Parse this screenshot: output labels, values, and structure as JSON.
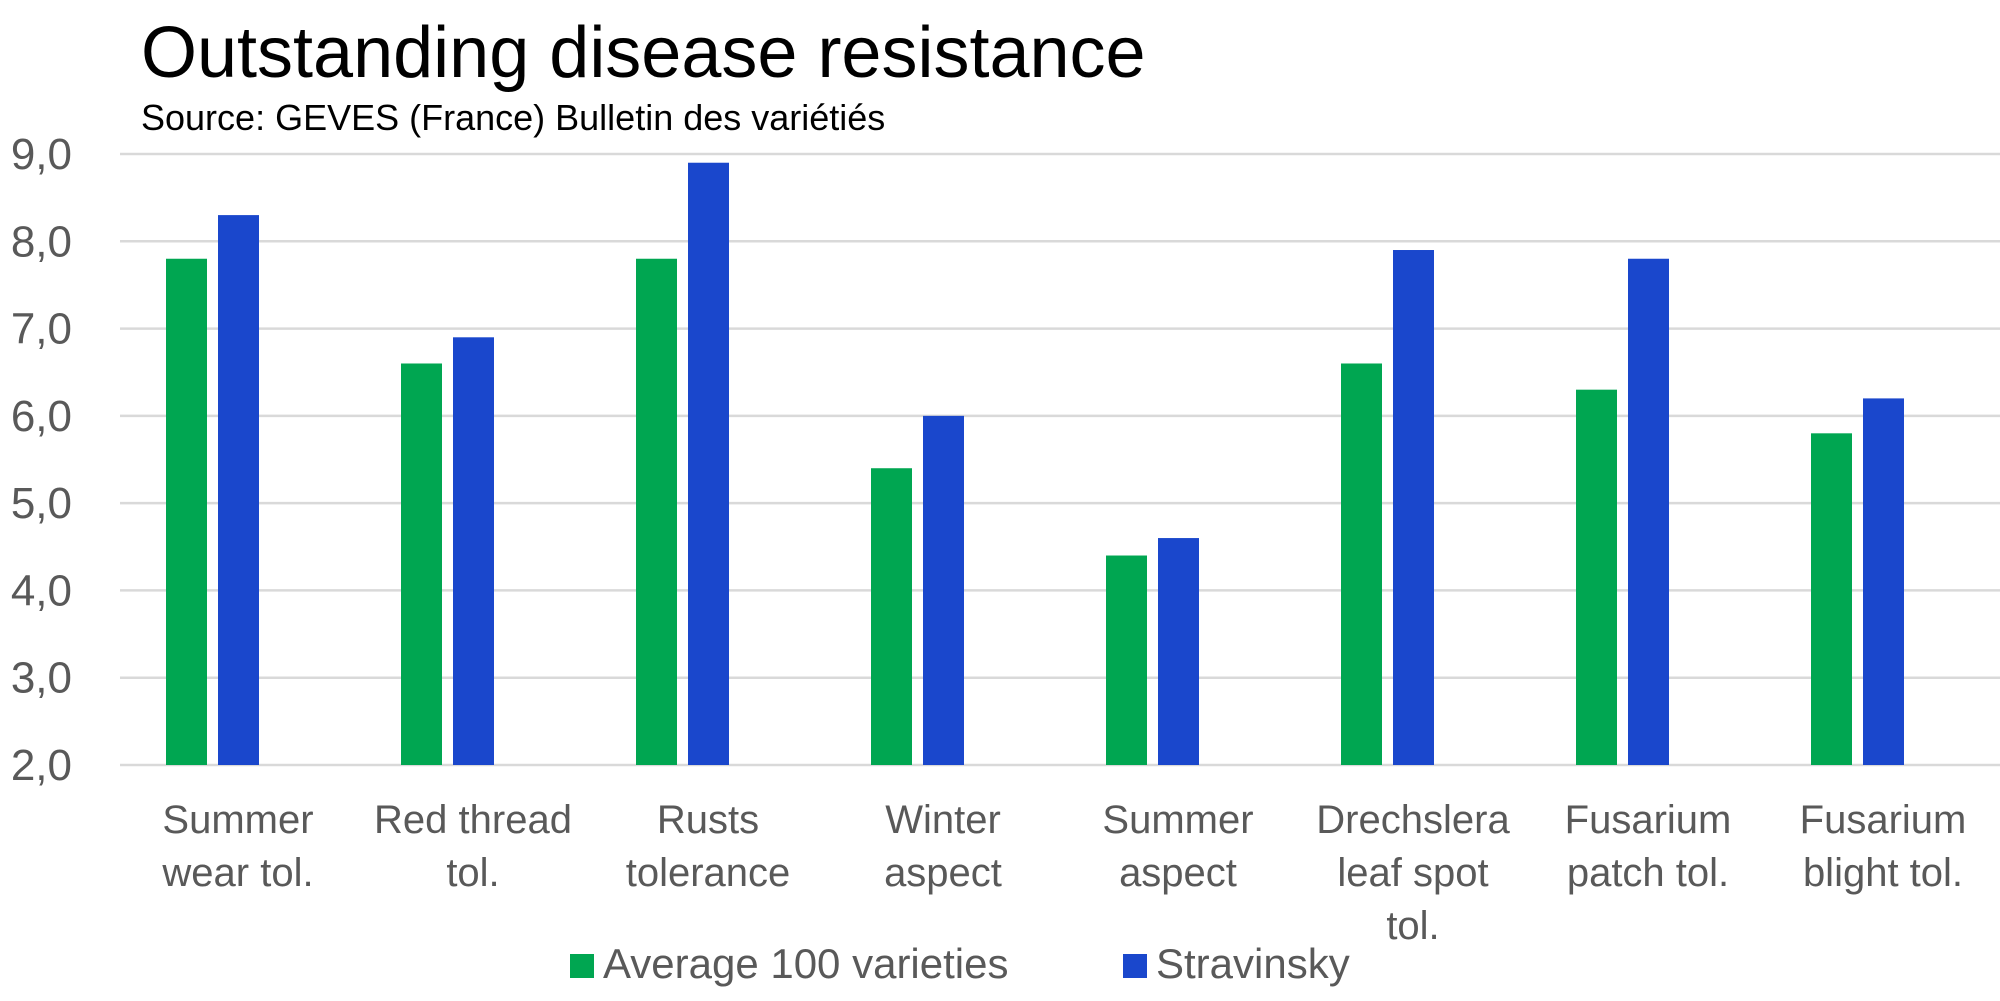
{
  "chart_data": {
    "type": "bar",
    "title": "Outstanding disease resistance",
    "subtitle": "Source: GEVES (France) Bulletin des variétiés",
    "categories": [
      [
        "Summer",
        "wear tol."
      ],
      [
        "Red thread",
        "tol."
      ],
      [
        "Rusts",
        "tolerance"
      ],
      [
        "Winter",
        "aspect"
      ],
      [
        "Summer",
        "aspect"
      ],
      [
        "Drechslera",
        "leaf spot",
        "tol."
      ],
      [
        "Fusarium",
        "patch tol."
      ],
      [
        "Fusarium",
        "blight tol."
      ]
    ],
    "series": [
      {
        "name": "Average 100 varieties",
        "color": "#00A651",
        "values": [
          7.8,
          6.6,
          7.8,
          5.4,
          4.4,
          6.6,
          6.3,
          5.8
        ]
      },
      {
        "name": "Stravinsky",
        "color": "#1A47CC",
        "values": [
          8.3,
          6.9,
          8.9,
          6.0,
          4.6,
          7.9,
          7.8,
          6.2
        ]
      }
    ],
    "ylim": [
      2.0,
      9.0
    ],
    "yticks": [
      2.0,
      3.0,
      4.0,
      5.0,
      6.0,
      7.0,
      8.0,
      9.0
    ],
    "ytick_labels": [
      "2,0",
      "3,0",
      "4,0",
      "5,0",
      "6,0",
      "7,0",
      "8,0",
      "9,0"
    ],
    "grid": true,
    "xlabel": "",
    "ylabel": "",
    "legend_position": "bottom"
  }
}
